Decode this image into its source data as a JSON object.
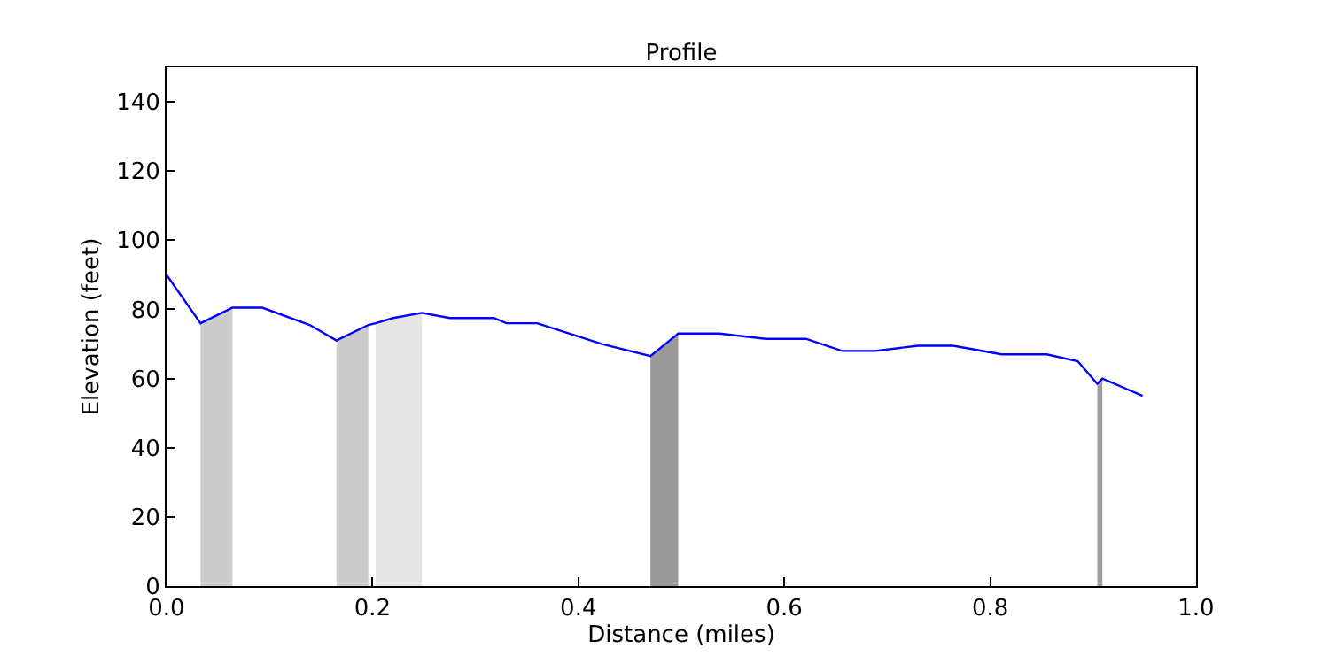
{
  "chart_data": {
    "type": "line",
    "title": "Profile",
    "xlabel": "Distance (miles)",
    "ylabel": "Elevation (feet)",
    "xlim": [
      0,
      1
    ],
    "xticks": [
      {
        "value": 0,
        "label": "0.0"
      },
      {
        "value": 0.2,
        "label": "0.2"
      },
      {
        "value": 0.4,
        "label": "0.4"
      },
      {
        "value": 0.6,
        "label": "0.6"
      },
      {
        "value": 0.8,
        "label": "0.8"
      },
      {
        "value": 1,
        "label": "1.0"
      }
    ],
    "ylim": [
      0,
      150
    ],
    "yticks": [
      0,
      20,
      40,
      60,
      80,
      100,
      120,
      140
    ],
    "marker": "none",
    "line_style": "solid",
    "series": [
      {
        "type": "area",
        "color": "#cccccc",
        "x": [
          0.033,
          0.064
        ],
        "values": [
          76,
          80.5
        ]
      },
      {
        "type": "area",
        "color": "#cccccc",
        "x": [
          0.165,
          0.196
        ],
        "values": [
          71,
          75.5
        ]
      },
      {
        "type": "area",
        "color": "#e5e5e5",
        "x": [
          0.203,
          0.22,
          0.248
        ],
        "values": [
          76,
          77.5,
          79
        ]
      },
      {
        "type": "area",
        "color": "#999999",
        "x": [
          0.47,
          0.497
        ],
        "values": [
          66.5,
          73
        ]
      },
      {
        "type": "area",
        "color": "#a0a0a0",
        "x": [
          0.904,
          0.909
        ],
        "values": [
          58.5,
          60
        ]
      },
      {
        "color": "#0000ff",
        "x": [
          0,
          0.033,
          0.064,
          0.093,
          0.139,
          0.165,
          0.196,
          0.203,
          0.22,
          0.248,
          0.275,
          0.318,
          0.33,
          0.36,
          0.423,
          0.47,
          0.497,
          0.537,
          0.582,
          0.621,
          0.656,
          0.688,
          0.73,
          0.764,
          0.811,
          0.855,
          0.885,
          0.904,
          0.909,
          0.948
        ],
        "values": [
          90,
          76,
          80.5,
          80.5,
          75.5,
          71,
          75.5,
          76,
          77.5,
          79,
          77.5,
          77.5,
          76,
          76,
          70,
          66.5,
          73,
          73,
          71.5,
          71.5,
          68,
          68,
          69.5,
          69.5,
          67,
          67,
          65,
          58.5,
          60,
          55
        ]
      }
    ]
  }
}
